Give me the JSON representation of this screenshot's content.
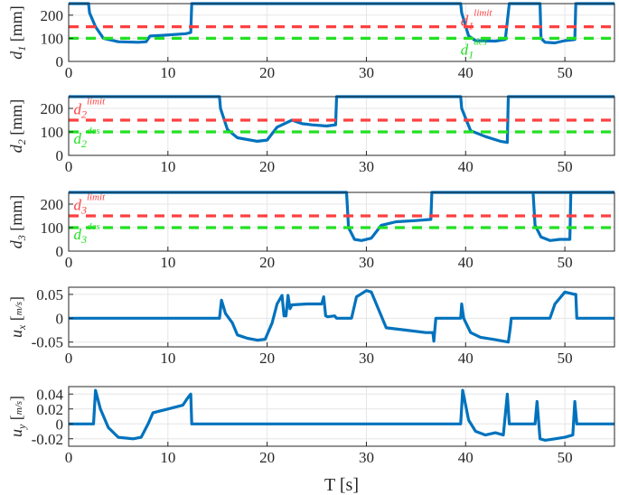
{
  "colors": {
    "signal": "#0072BD",
    "limit": "#ff4040",
    "desired": "#22e022",
    "grid": "#e6e6e6",
    "axis": "#262626"
  },
  "xlabel": "T [s]",
  "chart_data": [
    {
      "type": "line",
      "ylabel": {
        "var": "d",
        "sub": "1",
        "unit": " [mm]"
      },
      "xlim": [
        0,
        55
      ],
      "ylim": [
        0,
        250
      ],
      "xticks": [
        0,
        10,
        20,
        30,
        40,
        50
      ],
      "xtick_labels": [
        "0",
        "10",
        "20",
        "30",
        "40",
        "50"
      ],
      "yticks": [
        0,
        100,
        200
      ],
      "ytick_labels": [
        "0",
        "100",
        "200"
      ],
      "grid": true,
      "annotations": [
        {
          "var": "d",
          "sub": "1",
          "sup": "limit",
          "color": "red",
          "x": 39.5,
          "y": 155
        },
        {
          "var": "d",
          "sub": "1",
          "sup": "des",
          "color": "green",
          "x": 39.5,
          "y": 30
        }
      ],
      "series": [
        {
          "role": "signal",
          "x": [
            0,
            2.0,
            2.1,
            2.7,
            3.5,
            5,
            7,
            7.8,
            8.2,
            9.5,
            11.8,
            12.3,
            12.4,
            13,
            39.5,
            39.6,
            40.3,
            41,
            43,
            44,
            44.4,
            47.5,
            47.6,
            48,
            49,
            50,
            51,
            51.1,
            55
          ],
          "y": [
            250,
            250,
            210,
            150,
            100,
            85,
            83,
            85,
            110,
            113,
            120,
            125,
            250,
            250,
            250,
            210,
            110,
            90,
            88,
            95,
            250,
            250,
            100,
            83,
            80,
            90,
            95,
            250,
            250
          ]
        },
        {
          "role": "limit",
          "x": [
            0,
            55
          ],
          "y": [
            150,
            150
          ]
        },
        {
          "role": "desired",
          "x": [
            0,
            55
          ],
          "y": [
            100,
            100
          ]
        }
      ]
    },
    {
      "type": "line",
      "ylabel": {
        "var": "d",
        "sub": "2",
        "unit": " [mm]"
      },
      "xlim": [
        0,
        55
      ],
      "ylim": [
        0,
        250
      ],
      "xticks": [
        0,
        10,
        20,
        30,
        40,
        50
      ],
      "xtick_labels": [
        "0",
        "10",
        "20",
        "30",
        "40",
        "50"
      ],
      "yticks": [
        0,
        100,
        200
      ],
      "ytick_labels": [
        "0",
        "100",
        "200"
      ],
      "grid": true,
      "annotations": [
        {
          "var": "d",
          "sub": "2",
          "sup": "limit",
          "color": "red",
          "x": 0.5,
          "y": 175
        },
        {
          "var": "d",
          "sub": "2",
          "sup": "des",
          "color": "green",
          "x": 0.5,
          "y": 50
        }
      ],
      "series": [
        {
          "role": "signal",
          "x": [
            0,
            15.2,
            15.3,
            16,
            17,
            19,
            20,
            21,
            22.5,
            23.5,
            24.5,
            26,
            26.9,
            27.0,
            39.5,
            39.6,
            40.5,
            42,
            43.5,
            44.2,
            44.3,
            55
          ],
          "y": [
            250,
            250,
            200,
            110,
            75,
            60,
            65,
            120,
            150,
            135,
            130,
            125,
            130,
            250,
            250,
            200,
            105,
            80,
            60,
            55,
            250,
            250
          ]
        },
        {
          "role": "limit",
          "x": [
            0,
            55
          ],
          "y": [
            150,
            150
          ]
        },
        {
          "role": "desired",
          "x": [
            0,
            55
          ],
          "y": [
            100,
            100
          ]
        }
      ]
    },
    {
      "type": "line",
      "ylabel": {
        "var": "d",
        "sub": "3",
        "unit": " [mm]"
      },
      "xlim": [
        0,
        55
      ],
      "ylim": [
        0,
        250
      ],
      "xticks": [
        0,
        10,
        20,
        30,
        40,
        50
      ],
      "xtick_labels": [
        "0",
        "10",
        "20",
        "30",
        "40",
        "50"
      ],
      "yticks": [
        0,
        100,
        200
      ],
      "ytick_labels": [
        "0",
        "100",
        "200"
      ],
      "grid": true,
      "annotations": [
        {
          "var": "d",
          "sub": "3",
          "sup": "limit",
          "color": "red",
          "x": 0.5,
          "y": 175
        },
        {
          "var": "d",
          "sub": "3",
          "sup": "des",
          "color": "green",
          "x": 0.5,
          "y": 50
        }
      ],
      "series": [
        {
          "role": "signal",
          "x": [
            0,
            28.0,
            28.2,
            28.8,
            29.5,
            30.5,
            31.5,
            33,
            35,
            36.5,
            36.6,
            55
          ],
          "y": [
            250,
            250,
            100,
            50,
            45,
            55,
            110,
            125,
            130,
            135,
            250,
            250
          ]
        },
        {
          "role": "signal",
          "x": [
            46.8,
            47.0,
            47.6,
            48.5,
            49.5,
            50.5,
            50.6,
            55
          ],
          "y": [
            250,
            110,
            60,
            45,
            50,
            50,
            250,
            250
          ]
        },
        {
          "role": "limit",
          "x": [
            0,
            55
          ],
          "y": [
            150,
            150
          ]
        },
        {
          "role": "desired",
          "x": [
            0,
            55
          ],
          "y": [
            100,
            100
          ]
        }
      ]
    },
    {
      "type": "line",
      "ylabel": {
        "var": "u",
        "sub": "x",
        "unit_num": "m",
        "unit_den": "s"
      },
      "xlim": [
        0,
        55
      ],
      "ylim": [
        -0.06,
        0.065
      ],
      "xticks": [
        0,
        10,
        20,
        30,
        40,
        50
      ],
      "xtick_labels": [
        "0",
        "10",
        "20",
        "30",
        "40",
        "50"
      ],
      "yticks": [
        -0.05,
        0,
        0.05
      ],
      "ytick_labels": [
        "-0.05",
        "0",
        "0.05"
      ],
      "grid": true,
      "annotations": [],
      "series": [
        {
          "role": "signal",
          "x": [
            0,
            15.2,
            15.4,
            15.8,
            16.5,
            17,
            18,
            19,
            19.8,
            20.5,
            21,
            21.5,
            21.7,
            21.9,
            22.1,
            22.3,
            22.5,
            24,
            25.5,
            25.7,
            25.9,
            26.1,
            26.8,
            27.0,
            28.5,
            29,
            30,
            30.5,
            31.3,
            32,
            34,
            36,
            36.7,
            36.8,
            37.0,
            39.5,
            39.6,
            39.8,
            40.5,
            41.5,
            43,
            44.3,
            44.5,
            44.6,
            44.8,
            47.5,
            47.6,
            48.5,
            49,
            50,
            51,
            51.1,
            51.2,
            55
          ],
          "y": [
            0,
            0,
            0.038,
            0.01,
            -0.01,
            -0.035,
            -0.042,
            -0.046,
            -0.044,
            -0.01,
            0.03,
            0.048,
            0.005,
            0.005,
            0.048,
            0.02,
            0.028,
            0.03,
            0.03,
            0.045,
            0.005,
            0.003,
            0.005,
            0,
            0,
            0.045,
            0.058,
            0.055,
            0.015,
            -0.02,
            -0.025,
            -0.03,
            -0.03,
            -0.048,
            0,
            0,
            0.03,
            0,
            -0.03,
            -0.04,
            -0.045,
            -0.05,
            -0.02,
            0,
            0,
            0,
            0,
            0,
            0.03,
            0.055,
            0.05,
            0.05,
            0,
            0
          ]
        }
      ]
    },
    {
      "type": "line",
      "ylabel": {
        "var": "u",
        "sub": "y",
        "unit_num": "m",
        "unit_den": "s"
      },
      "xlim": [
        0,
        55
      ],
      "ylim": [
        -0.03,
        0.05
      ],
      "xticks": [
        0,
        10,
        20,
        30,
        40,
        50
      ],
      "xtick_labels": [
        "0",
        "10",
        "20",
        "30",
        "40",
        "50"
      ],
      "yticks": [
        -0.02,
        0,
        0.02,
        0.04
      ],
      "ytick_labels": [
        "-0.02",
        "0",
        "0.02",
        "0.04"
      ],
      "grid": true,
      "annotations": [],
      "series": [
        {
          "role": "signal",
          "x": [
            0,
            2.5,
            2.7,
            3.2,
            4,
            5,
            6.5,
            7.3,
            8,
            8.5,
            10,
            11.5,
            12.0,
            12.3,
            12.4,
            39.5,
            39.7,
            40.3,
            41,
            42,
            43,
            43.8,
            44.2,
            44.4,
            44.6,
            45.5,
            46,
            47.0,
            47.2,
            47.5,
            48,
            49,
            50,
            50.8,
            51.0,
            51.2,
            55
          ],
          "y": [
            0,
            0,
            0.045,
            0.02,
            -0.005,
            -0.018,
            -0.02,
            -0.018,
            0,
            0.015,
            0.02,
            0.025,
            0.035,
            0.04,
            0,
            0,
            0.045,
            0.005,
            -0.01,
            -0.015,
            -0.012,
            -0.015,
            0.04,
            0,
            0,
            0,
            0,
            0,
            0.03,
            -0.02,
            -0.022,
            -0.02,
            -0.018,
            -0.015,
            0.03,
            0,
            0
          ]
        }
      ]
    }
  ]
}
